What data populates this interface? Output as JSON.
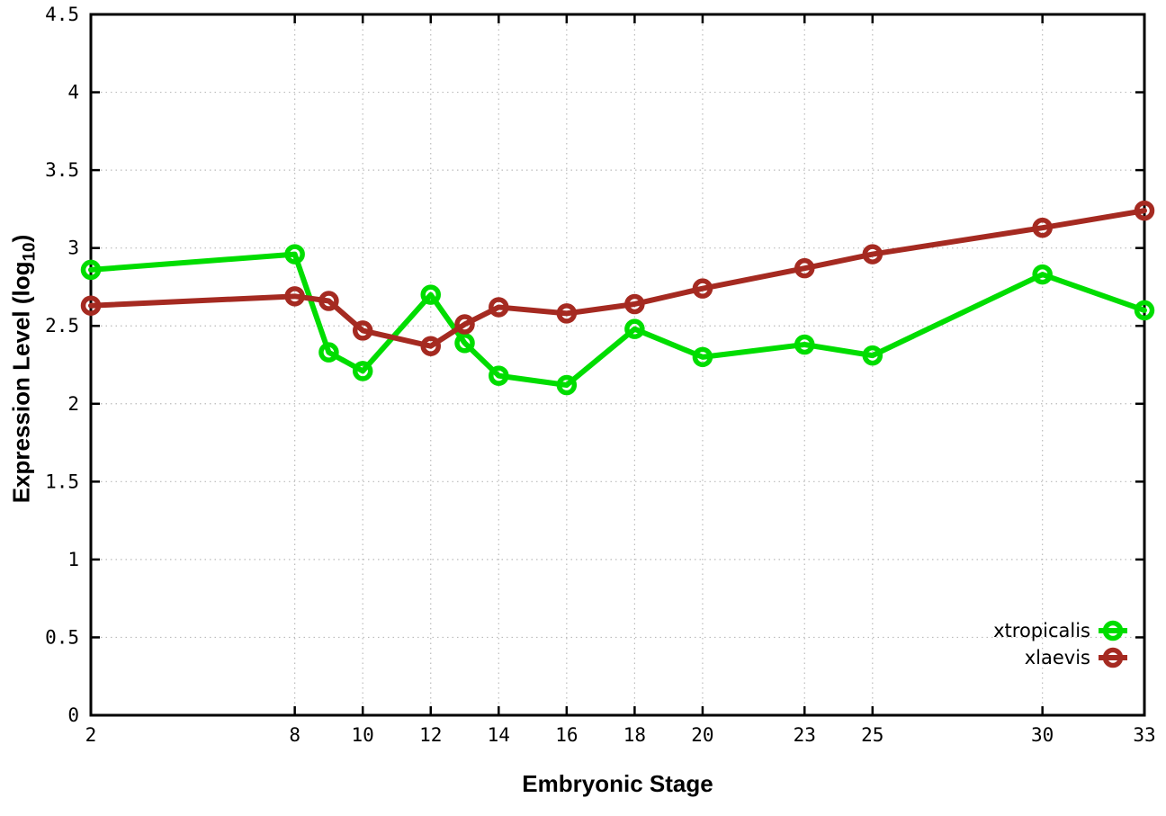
{
  "chart_data": {
    "type": "line",
    "x": [
      2,
      8,
      9,
      10,
      12,
      13,
      14,
      16,
      18,
      20,
      23,
      25,
      30,
      33
    ],
    "series": [
      {
        "name": "xtropicalis",
        "color": "#00dd00",
        "values": [
          2.86,
          2.96,
          2.33,
          2.21,
          2.7,
          2.39,
          2.18,
          2.12,
          2.48,
          2.3,
          2.38,
          2.31,
          2.83,
          2.6
        ]
      },
      {
        "name": "xlaevis",
        "color": "#a52a21",
        "values": [
          2.63,
          2.69,
          2.66,
          2.47,
          2.37,
          2.51,
          2.62,
          2.58,
          2.64,
          2.74,
          2.87,
          2.96,
          3.13,
          3.24
        ]
      }
    ],
    "xlabel": "Embryonic Stage",
    "ylabel": {
      "pre": "Expression Level (log",
      "sub": "10",
      "post": ")"
    },
    "xlim": [
      2,
      33
    ],
    "ylim": [
      0,
      4.5
    ],
    "xticks": [
      2,
      8,
      10,
      12,
      14,
      16,
      18,
      20,
      23,
      25,
      30,
      33
    ],
    "xtick_labels": [
      "2",
      "8",
      "10",
      "12",
      "14",
      "16",
      "18",
      "20",
      "23",
      "25",
      "30",
      "33"
    ],
    "yticks": [
      0,
      0.5,
      1,
      1.5,
      2,
      2.5,
      3,
      3.5,
      4,
      4.5
    ],
    "ytick_labels": [
      "0",
      "0.5",
      "1",
      "1.5",
      "2",
      "2.5",
      "3",
      "3.5",
      "4",
      "4.5"
    ],
    "grid": true,
    "legend_position": "bottom-right",
    "background": "#ffffff",
    "grid_color": "#bbbbbb",
    "border_color": "#000000",
    "text_color": "#000000"
  }
}
